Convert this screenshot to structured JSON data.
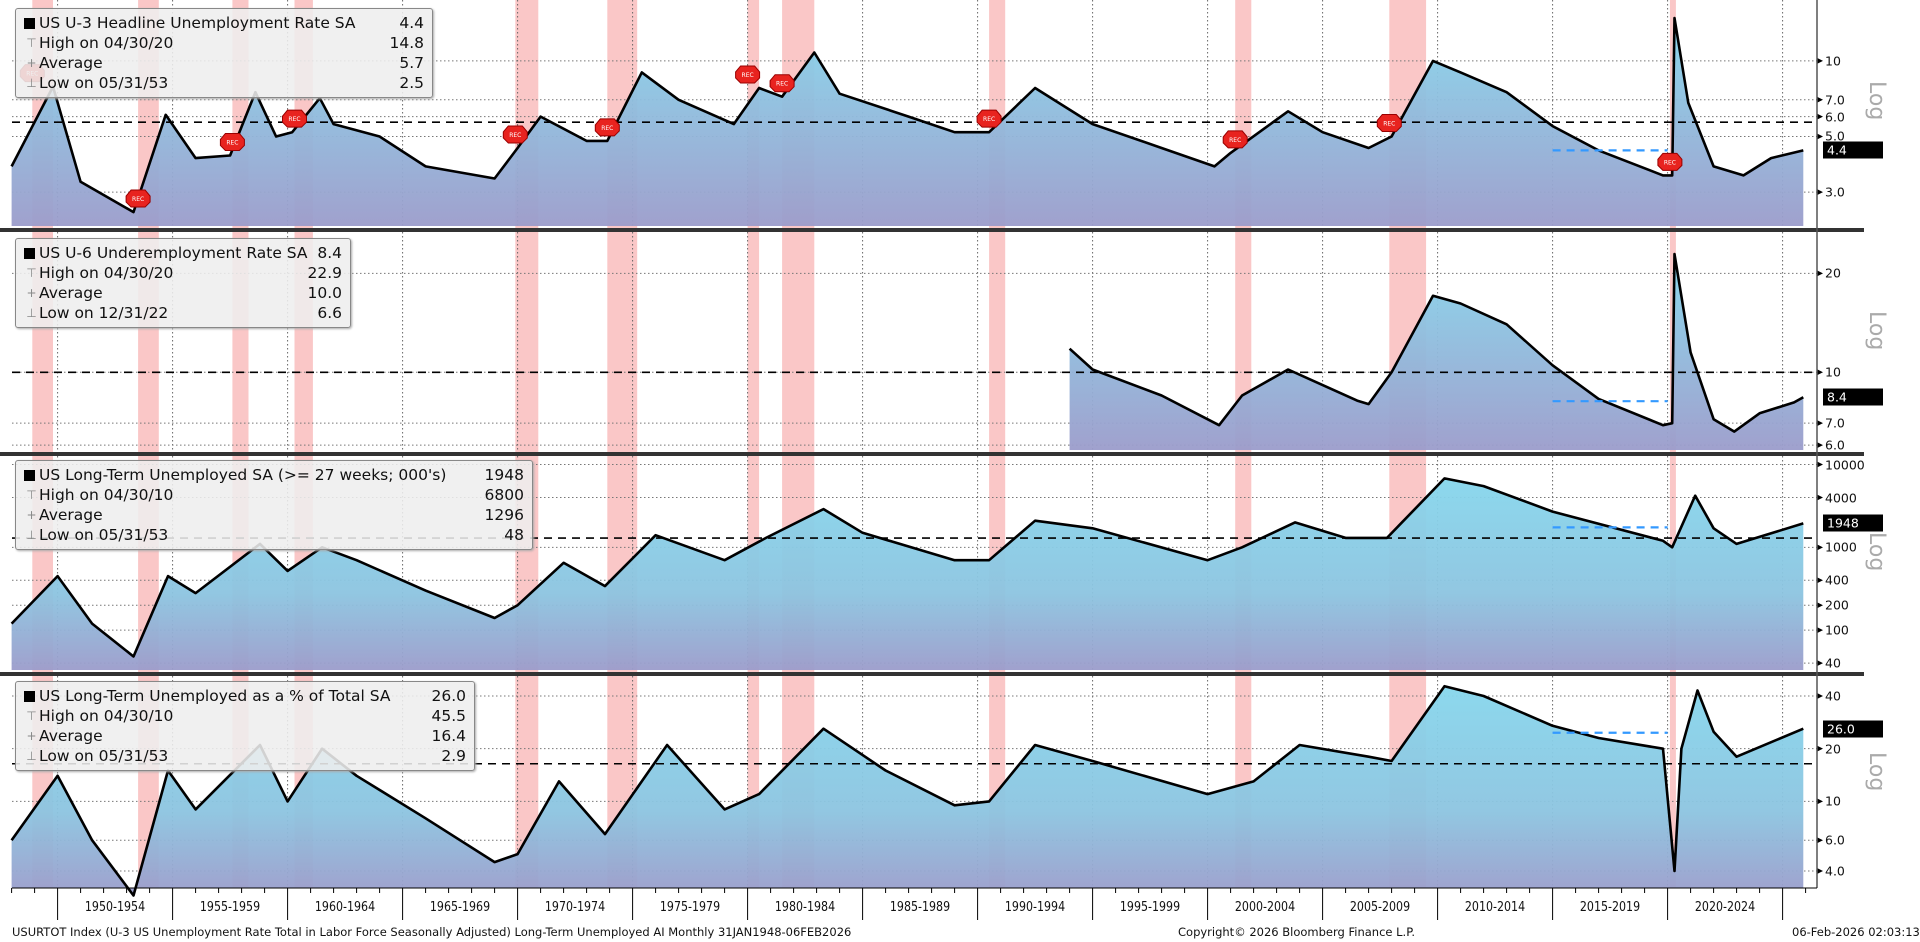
{
  "chart_data": [
    {
      "type": "area",
      "title": "US U-3 Headline Unemployment Rate SA",
      "last_value": "4.4",
      "stats": {
        "high_label": "High on 04/30/20",
        "high": "14.8",
        "avg_label": "Average",
        "avg": "5.7",
        "low_label": "Low on 05/31/53",
        "low": "2.5"
      },
      "scale": "Log",
      "yticks": [
        "3.0",
        "5.0",
        "6.0",
        "7.0",
        "10"
      ],
      "ytick_values": [
        3,
        5,
        6,
        7,
        10
      ],
      "ylim": [
        2.2,
        17
      ],
      "average": 5.7,
      "last": 4.4,
      "points": [
        [
          1948,
          3.8
        ],
        [
          1949.8,
          7.9
        ],
        [
          1951,
          3.3
        ],
        [
          1953.3,
          2.5
        ],
        [
          1954.7,
          6.1
        ],
        [
          1956,
          4.1
        ],
        [
          1957.5,
          4.2
        ],
        [
          1958.6,
          7.5
        ],
        [
          1959.5,
          5.0
        ],
        [
          1960.2,
          5.2
        ],
        [
          1961.4,
          7.1
        ],
        [
          1962,
          5.6
        ],
        [
          1964,
          5.0
        ],
        [
          1966,
          3.8
        ],
        [
          1969,
          3.4
        ],
        [
          1970,
          4.5
        ],
        [
          1971,
          6.0
        ],
        [
          1973,
          4.8
        ],
        [
          1973.9,
          4.8
        ],
        [
          1975.4,
          9.0
        ],
        [
          1977,
          7.0
        ],
        [
          1979.4,
          5.6
        ],
        [
          1980.5,
          7.8
        ],
        [
          1981.5,
          7.2
        ],
        [
          1982.9,
          10.8
        ],
        [
          1984,
          7.4
        ],
        [
          1987,
          6.0
        ],
        [
          1989,
          5.2
        ],
        [
          1990.5,
          5.2
        ],
        [
          1992.5,
          7.8
        ],
        [
          1995,
          5.6
        ],
        [
          1998,
          4.5
        ],
        [
          2000.3,
          3.8
        ],
        [
          2001,
          4.3
        ],
        [
          2003.5,
          6.3
        ],
        [
          2005,
          5.2
        ],
        [
          2007,
          4.5
        ],
        [
          2008,
          5.0
        ],
        [
          2009.8,
          10.0
        ],
        [
          2011,
          9.0
        ],
        [
          2013,
          7.5
        ],
        [
          2015,
          5.5
        ],
        [
          2017,
          4.4
        ],
        [
          2019.8,
          3.5
        ],
        [
          2020.2,
          3.5
        ],
        [
          2020.3,
          14.8
        ],
        [
          2020.9,
          6.8
        ],
        [
          2022,
          3.8
        ],
        [
          2023.3,
          3.5
        ],
        [
          2024.5,
          4.1
        ],
        [
          2025.9,
          4.4
        ]
      ]
    },
    {
      "type": "area",
      "title": "US U-6 Underemployment Rate SA",
      "last_value": "8.4",
      "stats": {
        "high_label": "High on 04/30/20",
        "high": "22.9",
        "avg_label": "Average",
        "avg": "10.0",
        "low_label": "Low on 12/31/22",
        "low": "6.6"
      },
      "scale": "Log",
      "yticks": [
        "6.0",
        "7.0",
        "10",
        "20"
      ],
      "ytick_values": [
        6,
        7,
        10,
        20
      ],
      "ylim": [
        5.8,
        26
      ],
      "average": 10.0,
      "last": 8.4,
      "points": [
        [
          1994,
          11.8
        ],
        [
          1995,
          10.2
        ],
        [
          1998,
          8.5
        ],
        [
          2000.5,
          6.9
        ],
        [
          2001.5,
          8.5
        ],
        [
          2003.5,
          10.2
        ],
        [
          2006.5,
          8.2
        ],
        [
          2007,
          8.0
        ],
        [
          2008,
          10
        ],
        [
          2009.8,
          17.1
        ],
        [
          2011,
          16.2
        ],
        [
          2013,
          14
        ],
        [
          2015,
          10.5
        ],
        [
          2017,
          8.3
        ],
        [
          2019.8,
          6.9
        ],
        [
          2020.2,
          7.0
        ],
        [
          2020.3,
          22.9
        ],
        [
          2021,
          11.5
        ],
        [
          2022,
          7.2
        ],
        [
          2022.9,
          6.6
        ],
        [
          2024,
          7.5
        ],
        [
          2025.5,
          8.1
        ],
        [
          2025.9,
          8.4
        ]
      ]
    },
    {
      "type": "area",
      "title": "US Long-Term Unemployed SA (>= 27 weeks; 000's)",
      "last_value": "1948",
      "stats": {
        "high_label": "High on 04/30/10",
        "high": "6800",
        "avg_label": "Average",
        "avg": "1296",
        "low_label": "Low on 05/31/53",
        "low": "48"
      },
      "scale": "Log",
      "yticks": [
        "40",
        "100",
        "200",
        "400",
        "1000",
        "4000",
        "10000"
      ],
      "ytick_values": [
        40,
        100,
        200,
        400,
        1000,
        4000,
        10000
      ],
      "ylim": [
        33,
        12000
      ],
      "average": 1296,
      "last": 1948,
      "points": [
        [
          1948,
          120
        ],
        [
          1950,
          450
        ],
        [
          1951.5,
          120
        ],
        [
          1953.3,
          48
        ],
        [
          1954.8,
          450
        ],
        [
          1956,
          280
        ],
        [
          1958.8,
          1100
        ],
        [
          1960,
          520
        ],
        [
          1961.5,
          1000
        ],
        [
          1963,
          700
        ],
        [
          1966,
          300
        ],
        [
          1969,
          140
        ],
        [
          1970,
          200
        ],
        [
          1972,
          650
        ],
        [
          1973.8,
          340
        ],
        [
          1976,
          1400
        ],
        [
          1979,
          700
        ],
        [
          1980.8,
          1300
        ],
        [
          1983.3,
          2900
        ],
        [
          1985,
          1500
        ],
        [
          1989,
          700
        ],
        [
          1990.5,
          700
        ],
        [
          1992.5,
          2100
        ],
        [
          1995,
          1700
        ],
        [
          2000,
          700
        ],
        [
          2001.5,
          1000
        ],
        [
          2003.8,
          2000
        ],
        [
          2006,
          1300
        ],
        [
          2007.8,
          1300
        ],
        [
          2010.3,
          6800
        ],
        [
          2012,
          5500
        ],
        [
          2015,
          2700
        ],
        [
          2019.8,
          1200
        ],
        [
          2020.2,
          1000
        ],
        [
          2021.2,
          4200
        ],
        [
          2022,
          1700
        ],
        [
          2023,
          1100
        ],
        [
          2025.9,
          1948
        ]
      ]
    },
    {
      "type": "area",
      "title": "US Long-Term Unemployed as a % of Total SA",
      "last_value": "26.0",
      "stats": {
        "high_label": "High on 04/30/10",
        "high": "45.5",
        "avg_label": "Average",
        "avg": "16.4",
        "low_label": "Low on 05/31/53",
        "low": "2.9"
      },
      "scale": "Log",
      "yticks": [
        "4.0",
        "6.0",
        "10",
        "20",
        "40"
      ],
      "ytick_values": [
        4,
        6,
        10,
        20,
        40
      ],
      "ylim": [
        3.2,
        50
      ],
      "average": 16.4,
      "last": 26.0,
      "points": [
        [
          1948,
          6
        ],
        [
          1950,
          14
        ],
        [
          1951.5,
          6
        ],
        [
          1953.3,
          2.9
        ],
        [
          1954.8,
          15
        ],
        [
          1956,
          9
        ],
        [
          1958.8,
          21
        ],
        [
          1960,
          10
        ],
        [
          1961.5,
          20
        ],
        [
          1963,
          14
        ],
        [
          1966,
          8
        ],
        [
          1969,
          4.5
        ],
        [
          1970,
          5
        ],
        [
          1971.8,
          13
        ],
        [
          1973.8,
          6.5
        ],
        [
          1976.5,
          21
        ],
        [
          1979,
          9
        ],
        [
          1980.5,
          11
        ],
        [
          1983.3,
          26
        ],
        [
          1986,
          15
        ],
        [
          1989,
          9.5
        ],
        [
          1990.5,
          10
        ],
        [
          1992.5,
          21
        ],
        [
          1995,
          17
        ],
        [
          2000,
          11
        ],
        [
          2002,
          13
        ],
        [
          2004,
          21
        ],
        [
          2007,
          18
        ],
        [
          2008,
          17
        ],
        [
          2010.3,
          45.5
        ],
        [
          2012,
          40
        ],
        [
          2015,
          27
        ],
        [
          2017,
          23
        ],
        [
          2019.8,
          20
        ],
        [
          2020.3,
          4
        ],
        [
          2020.6,
          20
        ],
        [
          2021.3,
          43
        ],
        [
          2022,
          25
        ],
        [
          2023,
          18
        ],
        [
          2025.9,
          26
        ]
      ]
    }
  ],
  "recessions": [
    [
      1948.9,
      1949.8
    ],
    [
      1953.5,
      1954.4
    ],
    [
      1957.6,
      1958.3
    ],
    [
      1960.3,
      1961.1
    ],
    [
      1969.9,
      1970.9
    ],
    [
      1973.9,
      1975.2
    ],
    [
      1980.0,
      1980.5
    ],
    [
      1981.5,
      1982.9
    ],
    [
      1990.5,
      1991.2
    ],
    [
      2001.2,
      2001.9
    ],
    [
      2007.9,
      2009.5
    ],
    [
      2020.1,
      2020.3
    ]
  ],
  "recession_marker_label": "REC",
  "xaxis": {
    "range": [
      1948,
      2026.1
    ],
    "labels": [
      "1950-1954",
      "1955-1959",
      "1960-1964",
      "1965-1969",
      "1970-1974",
      "1975-1979",
      "1980-1984",
      "1985-1989",
      "1990-1994",
      "1995-1999",
      "2000-2004",
      "2005-2009",
      "2010-2014",
      "2015-2019",
      "2020-2024"
    ]
  },
  "footer": {
    "description": "USURTOT Index (U-3 US Unemployment Rate Total in Labor Force Seasonally Adjusted) Long-Term Unemployed AI Monthly 31JAN1948-06FEB2026",
    "copyright": "Copyright© 2026 Bloomberg Finance L.P.",
    "timestamp": "06-Feb-2026 02:03:13"
  },
  "colors": {
    "fill_top": "#86d6ec",
    "fill_bottom": "#9b9ccb",
    "recession": "#f7a9a9",
    "line": "#000000",
    "avg_line": "#000000",
    "ref_line": "#3399ff",
    "marker": "#e8231f"
  }
}
